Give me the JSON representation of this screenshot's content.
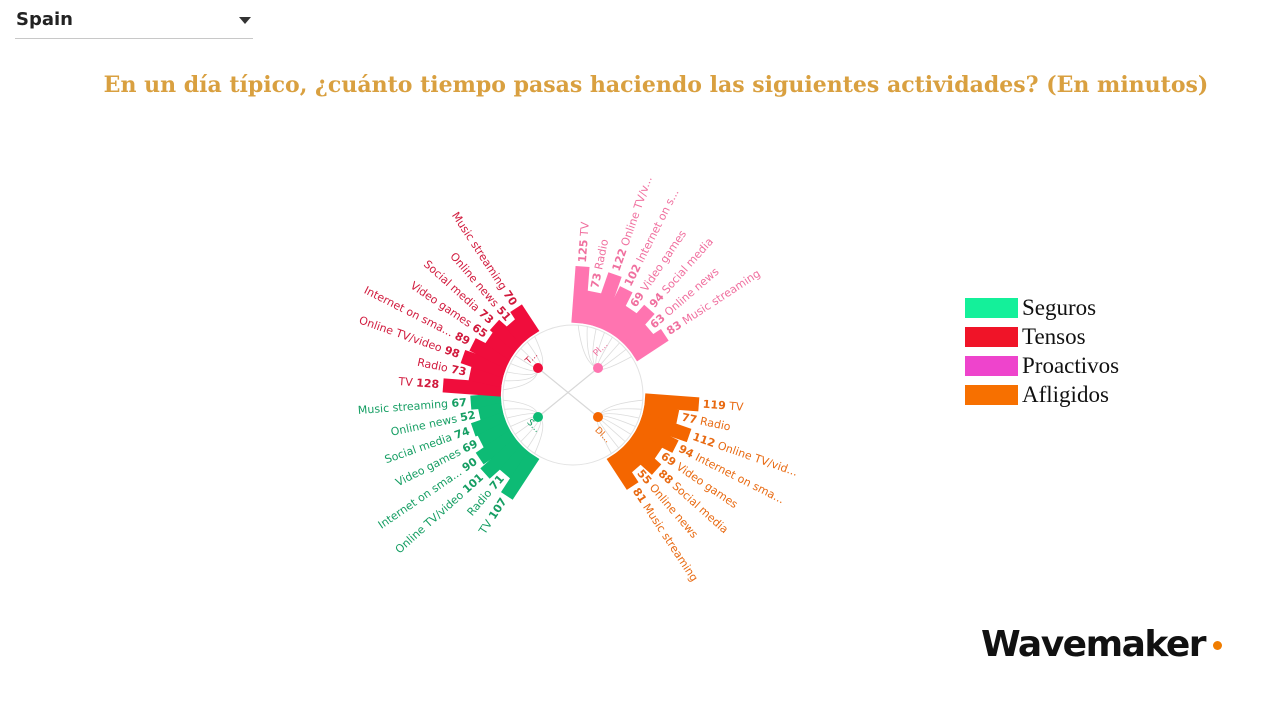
{
  "filter": {
    "selected": "Spain"
  },
  "title": "En un día típico, ¿cuánto tiempo pasas haciendo las siguientes actividades? (En minutos)",
  "legend": [
    {
      "label": "Seguros",
      "color": "#14f09a"
    },
    {
      "label": "Tensos",
      "color": "#f01428"
    },
    {
      "label": "Proactivos",
      "color": "#ee44cc"
    },
    {
      "label": "Afligidos",
      "color": "#f77000"
    }
  ],
  "logo": {
    "text": "Wavemaker",
    "accent": "#f07d00"
  },
  "chart_data": {
    "type": "radial-bar",
    "groups": [
      {
        "name": "Seguros",
        "short": "S...",
        "color": "#0dbb75",
        "text_color": "#159e63",
        "categories": [
          "Music streaming",
          "Online news",
          "Social media",
          "Video games",
          "Internet on sma...",
          "Online TV/video",
          "Radio",
          "TV"
        ],
        "values": [
          67,
          52,
          74,
          69,
          90,
          101,
          71,
          107
        ]
      },
      {
        "name": "Tensos",
        "short": "T...",
        "color": "#f00d3c",
        "text_color": "#d11a3d",
        "categories": [
          "TV",
          "Radio",
          "Online TV/video",
          "Internet on sma...",
          "Video games",
          "Social media",
          "Online news",
          "Music streaming"
        ],
        "values": [
          128,
          73,
          98,
          89,
          65,
          73,
          51,
          70
        ]
      },
      {
        "name": "Proactivos",
        "short": "Pl...",
        "color": "#ff74b0",
        "text_color": "#f0709f",
        "categories": [
          "TV",
          "Radio",
          "Online TV/v...",
          "Internet on s...",
          "Video games",
          "Social media",
          "Online news",
          "Music streaming"
        ],
        "values": [
          125,
          73,
          122,
          102,
          69,
          94,
          63,
          83
        ]
      },
      {
        "name": "Afligidos",
        "short": "Dl...",
        "color": "#f46600",
        "text_color": "#e86a12",
        "categories": [
          "TV",
          "Radio",
          "Online TV/vid...",
          "Internet on sma...",
          "Video games",
          "Social media",
          "Online news",
          "Music streaming"
        ],
        "values": [
          119,
          77,
          112,
          94,
          69,
          88,
          55,
          81
        ]
      }
    ]
  }
}
